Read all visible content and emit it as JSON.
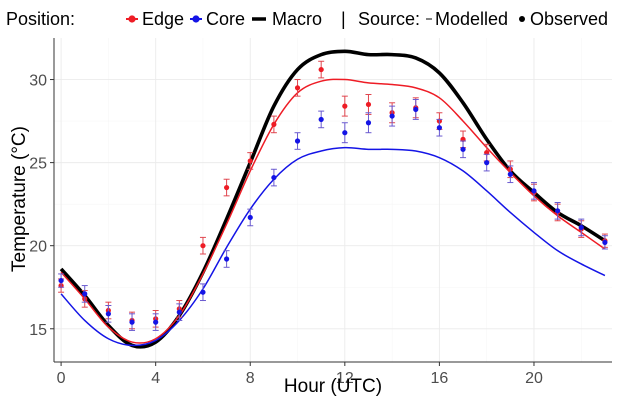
{
  "chart_data": {
    "type": "line",
    "title": "",
    "xlabel": "Hour (UTC)",
    "ylabel": "Temperature (°C)",
    "xlim": [
      -0.3,
      23.3
    ],
    "ylim": [
      13.0,
      32.5
    ],
    "x_ticks": [
      0,
      4,
      8,
      12,
      16,
      20
    ],
    "y_ticks": [
      15,
      20,
      25,
      30
    ],
    "grid": true,
    "legend": {
      "placement": "top",
      "position_title": "Position:",
      "position_edge": "Edge",
      "position_core": "Core",
      "position_macro": "Macro",
      "separator": "|",
      "source_title": "Source:",
      "source_modelled": "Modelled",
      "source_observed": "Observed"
    },
    "colors": {
      "edge": "#ee1c25",
      "core": "#1414e6",
      "macro": "#000000",
      "errorbar_mix": "#8a2a9a"
    },
    "modelled_series": [
      {
        "name": "Macro",
        "color": "#000000",
        "x": [
          0,
          1,
          2,
          3,
          4,
          5,
          6,
          7,
          8,
          9,
          10,
          11,
          12,
          13,
          14,
          15,
          16,
          17,
          18,
          19,
          20,
          21,
          22,
          23
        ],
        "y": [
          18.6,
          17.0,
          15.2,
          14.0,
          14.2,
          15.8,
          18.4,
          21.6,
          25.0,
          28.4,
          30.6,
          31.5,
          31.7,
          31.5,
          31.5,
          31.3,
          30.4,
          28.6,
          26.4,
          24.5,
          23.2,
          22.0,
          21.2,
          20.3
        ]
      },
      {
        "name": "Edge",
        "color": "#ee1c25",
        "x": [
          0,
          1,
          2,
          3,
          4,
          5,
          6,
          7,
          8,
          9,
          10,
          11,
          12,
          13,
          14,
          15,
          16,
          17,
          18,
          19,
          20,
          21,
          22,
          23
        ],
        "y": [
          18.4,
          16.8,
          15.1,
          14.2,
          14.4,
          15.8,
          18.3,
          21.3,
          24.5,
          27.3,
          29.2,
          29.9,
          30.0,
          29.8,
          29.7,
          29.5,
          28.9,
          27.5,
          25.9,
          24.4,
          23.0,
          21.8,
          20.8,
          19.8
        ]
      },
      {
        "name": "Core",
        "color": "#1414e6",
        "x": [
          0,
          1,
          2,
          3,
          4,
          5,
          6,
          7,
          8,
          9,
          10,
          11,
          12,
          13,
          14,
          15,
          16,
          17,
          18,
          19,
          20,
          21,
          22,
          23
        ],
        "y": [
          17.1,
          15.5,
          14.4,
          14.0,
          14.3,
          15.5,
          17.4,
          19.9,
          22.2,
          24.0,
          25.2,
          25.7,
          25.9,
          25.8,
          25.8,
          25.7,
          25.3,
          24.5,
          23.3,
          22.0,
          20.8,
          19.7,
          18.9,
          18.2
        ]
      }
    ],
    "observed_series": [
      {
        "name": "Edge",
        "color": "#ee1c25",
        "x": [
          0,
          1,
          2,
          3,
          4,
          5,
          6,
          7,
          8,
          9,
          10,
          11,
          12,
          13,
          14,
          15,
          16,
          17,
          18,
          19,
          20,
          21,
          22,
          23
        ],
        "y": [
          17.6,
          16.8,
          16.1,
          15.5,
          15.6,
          16.2,
          20.0,
          23.5,
          25.1,
          27.3,
          29.5,
          30.6,
          28.4,
          28.5,
          28.0,
          28.3,
          27.5,
          26.4,
          25.6,
          24.6,
          23.2,
          22.0,
          21.0,
          20.3
        ],
        "err": [
          0.4,
          0.5,
          0.5,
          0.5,
          0.5,
          0.5,
          0.5,
          0.5,
          0.5,
          0.5,
          0.5,
          0.5,
          0.6,
          0.6,
          0.6,
          0.6,
          0.5,
          0.5,
          0.5,
          0.5,
          0.5,
          0.5,
          0.5,
          0.4
        ]
      },
      {
        "name": "Core",
        "color": "#1414e6",
        "x": [
          0,
          1,
          2,
          3,
          4,
          5,
          6,
          7,
          8,
          9,
          10,
          11,
          12,
          13,
          14,
          15,
          16,
          17,
          18,
          19,
          20,
          21,
          22,
          23
        ],
        "y": [
          17.9,
          17.1,
          15.9,
          15.4,
          15.4,
          16.0,
          17.2,
          19.2,
          21.7,
          24.1,
          26.3,
          27.6,
          26.8,
          27.4,
          27.8,
          28.2,
          27.1,
          25.8,
          25.0,
          24.3,
          23.3,
          22.1,
          21.1,
          20.2
        ],
        "err": [
          0.4,
          0.5,
          0.5,
          0.5,
          0.5,
          0.5,
          0.5,
          0.5,
          0.5,
          0.5,
          0.5,
          0.5,
          0.6,
          0.6,
          0.6,
          0.6,
          0.5,
          0.5,
          0.5,
          0.5,
          0.5,
          0.5,
          0.5,
          0.4
        ]
      }
    ]
  }
}
